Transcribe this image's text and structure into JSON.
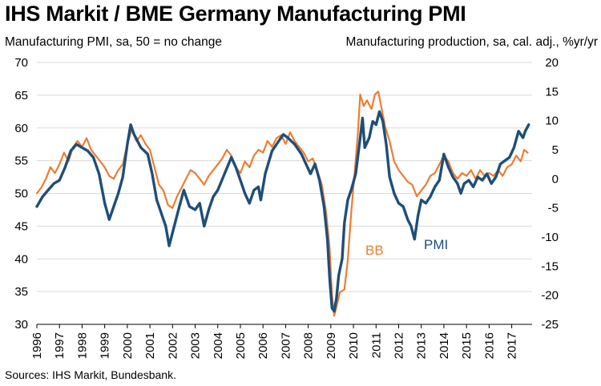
{
  "chart_data": {
    "type": "line",
    "title": "IHS Markit / BME Germany Manufacturing PMI",
    "ylabel_left": "Manufacturing PMI, sa, 50 = no change",
    "ylabel_right": "Manufacturing production, sa, cal. adj., %yr/yr",
    "source": "Sources: IHS Markit, Bundesbank.",
    "ylim_left": [
      30,
      70
    ],
    "ylim_right": [
      -25,
      20
    ],
    "yticks_left": [
      "30",
      "35",
      "40",
      "45",
      "50",
      "55",
      "60",
      "65",
      "70"
    ],
    "yticks_right": [
      "-25",
      "-20",
      "-15",
      "-10",
      "-5",
      "0",
      "5",
      "10",
      "15",
      "20"
    ],
    "xlim": [
      1996.0,
      2017.9
    ],
    "xticks": [
      "1996",
      "1997",
      "1998",
      "1999",
      "2000",
      "2001",
      "2002",
      "2003",
      "2004",
      "2005",
      "2006",
      "2007",
      "2008",
      "2009",
      "2010",
      "2011",
      "2012",
      "2013",
      "2014",
      "2015",
      "2016",
      "2017"
    ],
    "grid": "horizontal",
    "series": [
      {
        "name": "PMI",
        "axis": "left",
        "color": "#1f4e79",
        "points": [
          [
            1996.0,
            48.0
          ],
          [
            1996.25,
            49.5
          ],
          [
            1996.5,
            50.5
          ],
          [
            1996.75,
            51.5
          ],
          [
            1997.0,
            52.0
          ],
          [
            1997.25,
            54.0
          ],
          [
            1997.5,
            56.5
          ],
          [
            1997.75,
            57.5
          ],
          [
            1998.0,
            57.0
          ],
          [
            1998.25,
            56.5
          ],
          [
            1998.5,
            55.5
          ],
          [
            1998.75,
            53.0
          ],
          [
            1999.0,
            48.5
          ],
          [
            1999.2,
            46.0
          ],
          [
            1999.4,
            48.0
          ],
          [
            1999.6,
            50.0
          ],
          [
            1999.8,
            52.5
          ],
          [
            2000.0,
            57.5
          ],
          [
            2000.15,
            60.5
          ],
          [
            2000.3,
            59.0
          ],
          [
            2000.6,
            57.0
          ],
          [
            2000.9,
            56.0
          ],
          [
            2001.1,
            53.0
          ],
          [
            2001.3,
            49.0
          ],
          [
            2001.5,
            47.0
          ],
          [
            2001.7,
            45.0
          ],
          [
            2001.85,
            42.0
          ],
          [
            2002.0,
            44.0
          ],
          [
            2002.3,
            48.0
          ],
          [
            2002.5,
            50.5
          ],
          [
            2002.75,
            48.0
          ],
          [
            2003.0,
            47.5
          ],
          [
            2003.2,
            48.5
          ],
          [
            2003.4,
            45.0
          ],
          [
            2003.6,
            47.5
          ],
          [
            2003.8,
            49.5
          ],
          [
            2004.0,
            50.5
          ],
          [
            2004.3,
            53.0
          ],
          [
            2004.6,
            55.5
          ],
          [
            2004.8,
            54.0
          ],
          [
            2005.0,
            52.0
          ],
          [
            2005.2,
            50.0
          ],
          [
            2005.4,
            48.5
          ],
          [
            2005.6,
            50.5
          ],
          [
            2005.8,
            51.0
          ],
          [
            2005.9,
            49.0
          ],
          [
            2006.1,
            53.0
          ],
          [
            2006.4,
            56.5
          ],
          [
            2006.7,
            58.0
          ],
          [
            2006.9,
            59.0
          ],
          [
            2007.1,
            58.5
          ],
          [
            2007.4,
            57.5
          ],
          [
            2007.7,
            56.0
          ],
          [
            2007.9,
            54.5
          ],
          [
            2008.1,
            53.0
          ],
          [
            2008.3,
            54.5
          ],
          [
            2008.5,
            52.0
          ],
          [
            2008.7,
            48.0
          ],
          [
            2008.85,
            43.0
          ],
          [
            2008.95,
            37.0
          ],
          [
            2009.05,
            32.5
          ],
          [
            2009.15,
            32.0
          ],
          [
            2009.25,
            34.0
          ],
          [
            2009.35,
            37.5
          ],
          [
            2009.5,
            40.0
          ],
          [
            2009.6,
            45.5
          ],
          [
            2009.75,
            49.0
          ],
          [
            2009.9,
            50.5
          ],
          [
            2010.1,
            53.0
          ],
          [
            2010.3,
            58.5
          ],
          [
            2010.4,
            61.5
          ],
          [
            2010.5,
            57.0
          ],
          [
            2010.7,
            58.5
          ],
          [
            2010.85,
            61.0
          ],
          [
            2011.0,
            60.5
          ],
          [
            2011.15,
            62.5
          ],
          [
            2011.3,
            61.0
          ],
          [
            2011.45,
            57.5
          ],
          [
            2011.6,
            52.5
          ],
          [
            2011.8,
            50.0
          ],
          [
            2012.0,
            48.5
          ],
          [
            2012.2,
            48.0
          ],
          [
            2012.4,
            46.0
          ],
          [
            2012.55,
            45.0
          ],
          [
            2012.7,
            43.0
          ],
          [
            2012.85,
            46.5
          ],
          [
            2013.0,
            49.0
          ],
          [
            2013.2,
            48.5
          ],
          [
            2013.4,
            49.5
          ],
          [
            2013.6,
            51.0
          ],
          [
            2013.8,
            52.0
          ],
          [
            2013.9,
            54.0
          ],
          [
            2014.0,
            56.0
          ],
          [
            2014.2,
            54.0
          ],
          [
            2014.4,
            52.5
          ],
          [
            2014.6,
            51.5
          ],
          [
            2014.75,
            50.0
          ],
          [
            2014.9,
            51.5
          ],
          [
            2015.1,
            52.0
          ],
          [
            2015.3,
            51.0
          ],
          [
            2015.5,
            52.5
          ],
          [
            2015.7,
            52.0
          ],
          [
            2015.9,
            53.0
          ],
          [
            2016.1,
            51.5
          ],
          [
            2016.3,
            52.5
          ],
          [
            2016.5,
            54.5
          ],
          [
            2016.7,
            55.0
          ],
          [
            2016.9,
            55.5
          ],
          [
            2017.1,
            57.0
          ],
          [
            2017.3,
            59.5
          ],
          [
            2017.5,
            58.5
          ],
          [
            2017.6,
            59.5
          ],
          [
            2017.75,
            60.5
          ]
        ]
      },
      {
        "name": "BB",
        "axis": "right",
        "color": "#ed7d31",
        "points": [
          [
            1996.0,
            -2.5
          ],
          [
            1996.2,
            -1.5
          ],
          [
            1996.4,
            0.0
          ],
          [
            1996.6,
            2.0
          ],
          [
            1996.8,
            1.0
          ],
          [
            1997.0,
            2.5
          ],
          [
            1997.2,
            4.5
          ],
          [
            1997.4,
            3.0
          ],
          [
            1997.6,
            5.5
          ],
          [
            1997.8,
            6.5
          ],
          [
            1998.0,
            5.5
          ],
          [
            1998.2,
            7.0
          ],
          [
            1998.4,
            5.0
          ],
          [
            1998.6,
            4.0
          ],
          [
            1998.8,
            3.0
          ],
          [
            1999.0,
            2.0
          ],
          [
            1999.2,
            0.5
          ],
          [
            1999.4,
            0.0
          ],
          [
            1999.6,
            1.5
          ],
          [
            1999.8,
            2.5
          ],
          [
            2000.0,
            6.0
          ],
          [
            2000.2,
            8.5
          ],
          [
            2000.4,
            6.5
          ],
          [
            2000.6,
            7.5
          ],
          [
            2000.8,
            6.0
          ],
          [
            2001.0,
            5.0
          ],
          [
            2001.2,
            2.0
          ],
          [
            2001.4,
            -1.0
          ],
          [
            2001.6,
            -2.0
          ],
          [
            2001.8,
            -4.5
          ],
          [
            2002.0,
            -5.0
          ],
          [
            2002.2,
            -3.0
          ],
          [
            2002.4,
            -1.5
          ],
          [
            2002.6,
            0.0
          ],
          [
            2002.8,
            1.5
          ],
          [
            2003.0,
            1.0
          ],
          [
            2003.2,
            0.0
          ],
          [
            2003.4,
            -1.0
          ],
          [
            2003.6,
            0.5
          ],
          [
            2003.8,
            1.5
          ],
          [
            2004.0,
            2.5
          ],
          [
            2004.2,
            3.5
          ],
          [
            2004.4,
            5.0
          ],
          [
            2004.6,
            4.0
          ],
          [
            2004.8,
            2.0
          ],
          [
            2005.0,
            1.0
          ],
          [
            2005.2,
            3.0
          ],
          [
            2005.4,
            2.0
          ],
          [
            2005.6,
            4.0
          ],
          [
            2005.8,
            5.0
          ],
          [
            2006.0,
            4.5
          ],
          [
            2006.2,
            6.5
          ],
          [
            2006.4,
            5.5
          ],
          [
            2006.6,
            7.0
          ],
          [
            2006.8,
            7.5
          ],
          [
            2007.0,
            6.0
          ],
          [
            2007.2,
            8.0
          ],
          [
            2007.4,
            6.5
          ],
          [
            2007.6,
            5.5
          ],
          [
            2007.8,
            4.5
          ],
          [
            2008.0,
            3.0
          ],
          [
            2008.2,
            3.5
          ],
          [
            2008.4,
            1.5
          ],
          [
            2008.6,
            -1.0
          ],
          [
            2008.8,
            -6.0
          ],
          [
            2008.95,
            -12.0
          ],
          [
            2009.05,
            -20.0
          ],
          [
            2009.15,
            -23.5
          ],
          [
            2009.25,
            -22.0
          ],
          [
            2009.4,
            -19.5
          ],
          [
            2009.6,
            -19.0
          ],
          [
            2009.75,
            -14.0
          ],
          [
            2009.9,
            -6.0
          ],
          [
            2010.05,
            1.0
          ],
          [
            2010.2,
            8.0
          ],
          [
            2010.3,
            14.5
          ],
          [
            2010.45,
            12.5
          ],
          [
            2010.6,
            13.5
          ],
          [
            2010.8,
            12.0
          ],
          [
            2010.95,
            14.5
          ],
          [
            2011.1,
            15.0
          ],
          [
            2011.25,
            12.0
          ],
          [
            2011.4,
            9.0
          ],
          [
            2011.6,
            6.5
          ],
          [
            2011.8,
            3.0
          ],
          [
            2012.0,
            1.5
          ],
          [
            2012.2,
            0.5
          ],
          [
            2012.4,
            -0.5
          ],
          [
            2012.6,
            -1.0
          ],
          [
            2012.8,
            -3.0
          ],
          [
            2013.0,
            -2.0
          ],
          [
            2013.2,
            -1.0
          ],
          [
            2013.4,
            0.5
          ],
          [
            2013.6,
            1.0
          ],
          [
            2013.8,
            2.5
          ],
          [
            2014.0,
            4.0
          ],
          [
            2014.2,
            3.0
          ],
          [
            2014.4,
            1.0
          ],
          [
            2014.6,
            0.0
          ],
          [
            2014.8,
            1.0
          ],
          [
            2015.0,
            0.5
          ],
          [
            2015.2,
            1.5
          ],
          [
            2015.4,
            0.0
          ],
          [
            2015.6,
            1.5
          ],
          [
            2015.8,
            0.5
          ],
          [
            2016.0,
            1.0
          ],
          [
            2016.2,
            0.5
          ],
          [
            2016.4,
            1.5
          ],
          [
            2016.6,
            0.5
          ],
          [
            2016.8,
            2.0
          ],
          [
            2017.0,
            2.5
          ],
          [
            2017.2,
            4.0
          ],
          [
            2017.4,
            3.0
          ],
          [
            2017.55,
            5.0
          ],
          [
            2017.7,
            4.5
          ]
        ]
      }
    ],
    "annotations": [
      {
        "text": "BB",
        "series": "BB"
      },
      {
        "text": "PMI",
        "series": "PMI"
      }
    ]
  }
}
